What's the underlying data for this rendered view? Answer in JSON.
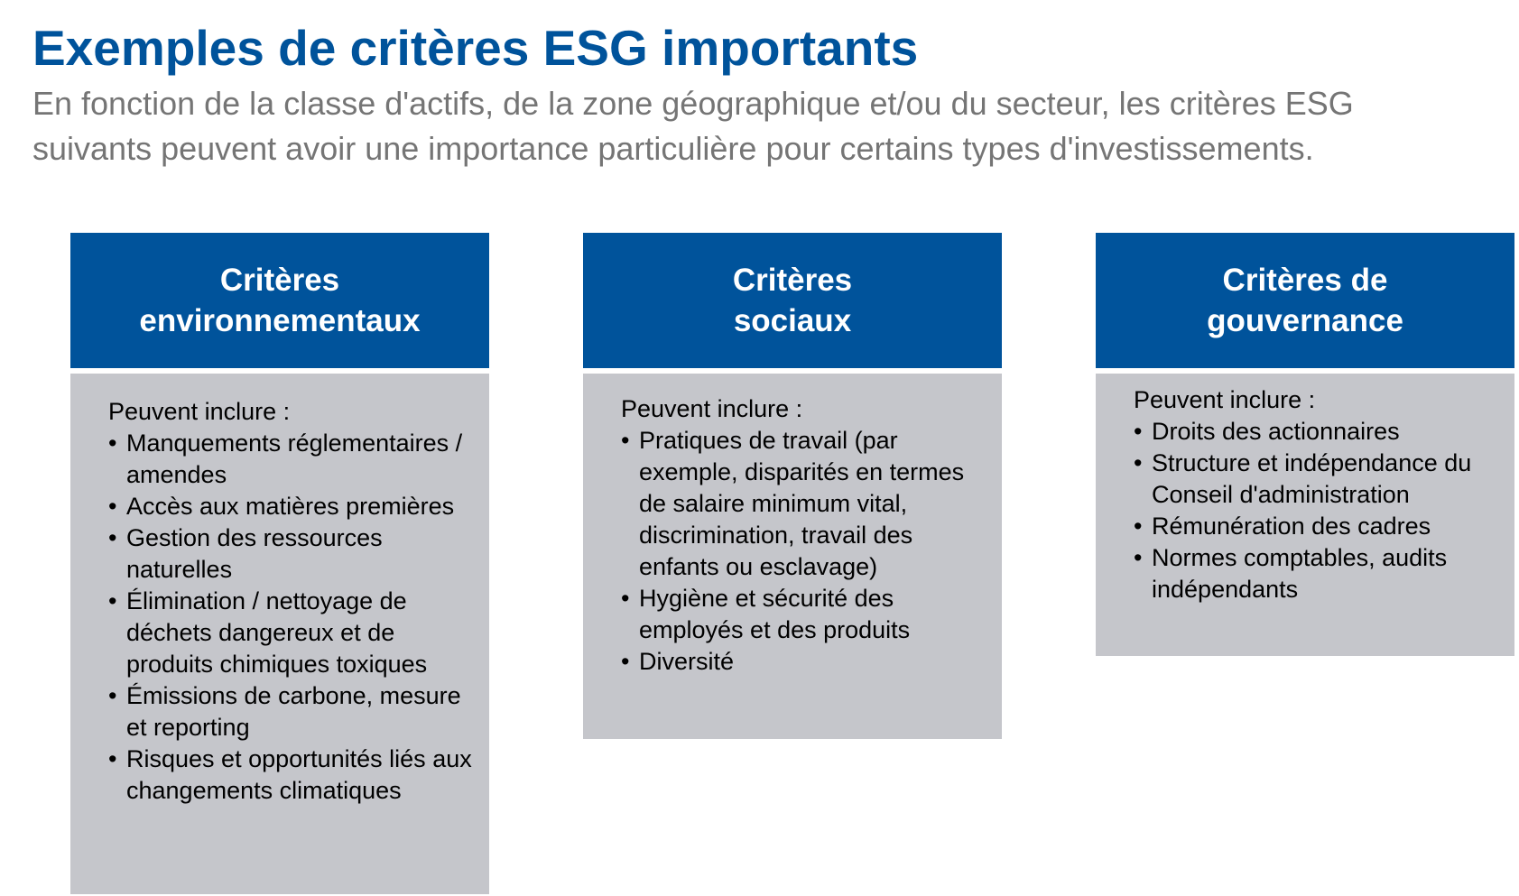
{
  "title": "Exemples de critères ESG importants",
  "subtitle": "En fonction de la classe d'actifs, de la zone géographique et/ou du secteur, les critères ESG suivants peuvent avoir une importance particulière pour certains types d'investissements.",
  "colors": {
    "accent": "#00539B",
    "subtitle": "#757575",
    "card_body": "#C5C6CB"
  },
  "cards": [
    {
      "header_line1": "Critères",
      "header_line2": "environnementaux",
      "intro": "Peuvent inclure :",
      "items": [
        "Manquements réglementaires / amendes",
        "Accès aux matières premières",
        "Gestion des ressources naturelles",
        "Élimination / nettoyage de déchets dangereux et de produits chimiques toxiques",
        "Émissions de carbone, mesure et reporting",
        "Risques et opportunités liés aux changements climatiques"
      ]
    },
    {
      "header_line1": "Critères",
      "header_line2": "sociaux",
      "intro": "Peuvent inclure :",
      "items": [
        "Pratiques de travail (par exemple, disparités en termes de salaire minimum vital, discrimination, travail des enfants ou esclavage)",
        "Hygiène et sécurité des employés et des produits",
        "Diversité"
      ]
    },
    {
      "header_line1": "Critères de",
      "header_line2": "gouvernance",
      "intro": "Peuvent inclure :",
      "items": [
        "Droits des actionnaires",
        "Structure et indépendance du Conseil d'administration",
        "Rémunération des cadres",
        "Normes comptables, audits indépendants"
      ]
    }
  ]
}
